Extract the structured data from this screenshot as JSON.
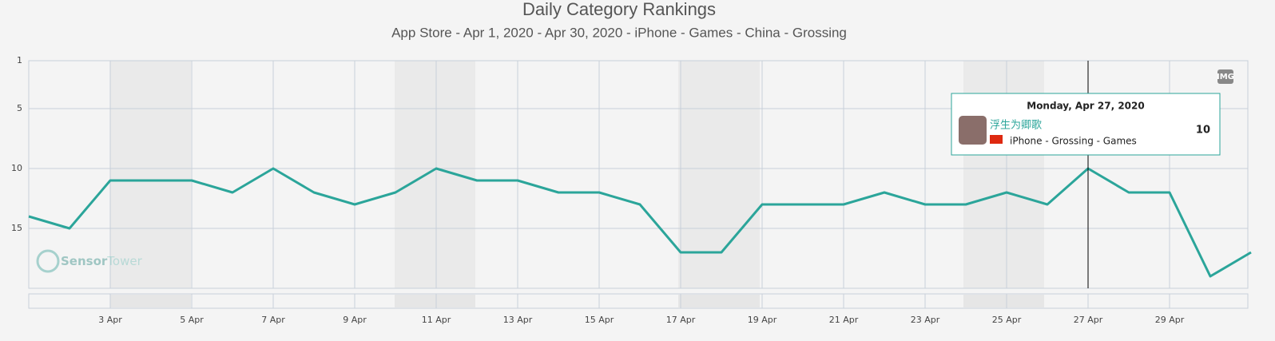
{
  "chart_data": {
    "type": "line",
    "title": "Daily Category Rankings",
    "subtitle": "App Store - Apr 1, 2020 - Apr 30, 2020 - iPhone - Games - China - Grossing",
    "x": [
      1,
      2,
      3,
      4,
      5,
      6,
      7,
      8,
      9,
      10,
      11,
      12,
      13,
      14,
      15,
      16,
      17,
      18,
      19,
      20,
      21,
      22,
      23,
      24,
      25,
      26,
      27,
      28,
      29,
      30,
      31
    ],
    "values": [
      14,
      15,
      11,
      11,
      11,
      12,
      10,
      12,
      13,
      12,
      10,
      11,
      11,
      12,
      12,
      13,
      17,
      17,
      13,
      13,
      13,
      12,
      13,
      13,
      12,
      13,
      10,
      12,
      12,
      19,
      17
    ],
    "color": "#2ba59a",
    "xlim": [
      1,
      31
    ],
    "xticks": [
      {
        "value": 3,
        "label": "3 Apr"
      },
      {
        "value": 5,
        "label": "5 Apr"
      },
      {
        "value": 7,
        "label": "7 Apr"
      },
      {
        "value": 9,
        "label": "9 Apr"
      },
      {
        "value": 11,
        "label": "11 Apr"
      },
      {
        "value": 13,
        "label": "13 Apr"
      },
      {
        "value": 15,
        "label": "15 Apr"
      },
      {
        "value": 17,
        "label": "17 Apr"
      },
      {
        "value": 19,
        "label": "19 Apr"
      },
      {
        "value": 21,
        "label": "21 Apr"
      },
      {
        "value": 23,
        "label": "23 Apr"
      },
      {
        "value": 25,
        "label": "25 Apr"
      },
      {
        "value": 27,
        "label": "27 Apr"
      },
      {
        "value": 29,
        "label": "29 Apr"
      }
    ],
    "ylim": [
      1,
      20
    ],
    "y_inverted": true,
    "yticks": [
      1,
      5,
      10,
      15
    ],
    "grid": true,
    "tooltip": {
      "index": 26,
      "date": "Monday, Apr 27, 2020",
      "app": "浮生为卿歌",
      "details": "iPhone - Grossing - Games"
    },
    "watermark": [
      "Sensor",
      "Tower"
    ],
    "button": "IMG"
  }
}
